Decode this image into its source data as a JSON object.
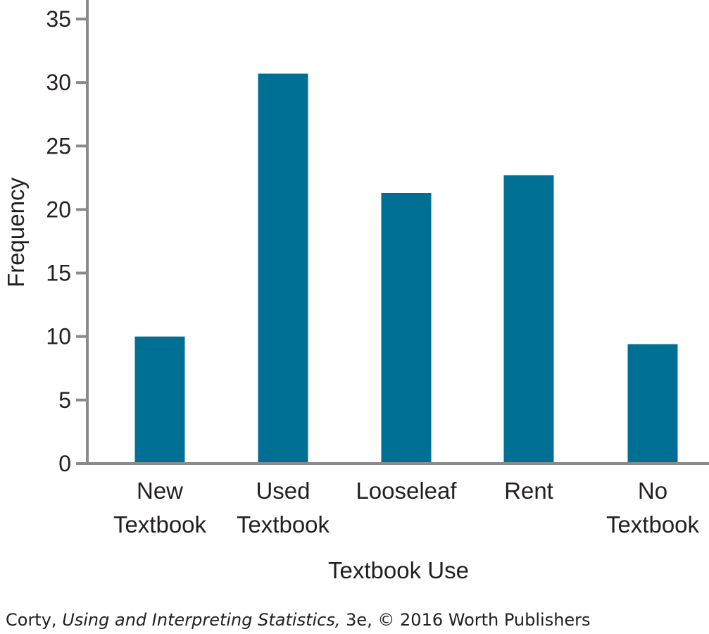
{
  "chart_data": {
    "type": "bar",
    "categories": [
      [
        "New",
        "Textbook"
      ],
      [
        "Used",
        "Textbook"
      ],
      [
        "Looseleaf"
      ],
      [
        "Rent"
      ],
      [
        "No",
        "Textbook"
      ]
    ],
    "values": [
      10,
      30.7,
      21.3,
      22.7,
      9.4
    ],
    "xlabel": "Textbook Use",
    "ylabel": "Frequency",
    "ylim": [
      0,
      35
    ],
    "yticks": [
      0,
      5,
      10,
      15,
      20,
      25,
      30,
      35
    ],
    "bar_color": "#006f94",
    "axis_color": "#8a8b8d",
    "grid": false,
    "legend": "none"
  },
  "credit": {
    "author": "Corty, ",
    "title": "Using and Interpreting Statistics,",
    "rest": " 3e, © 2016 Worth Publishers"
  }
}
